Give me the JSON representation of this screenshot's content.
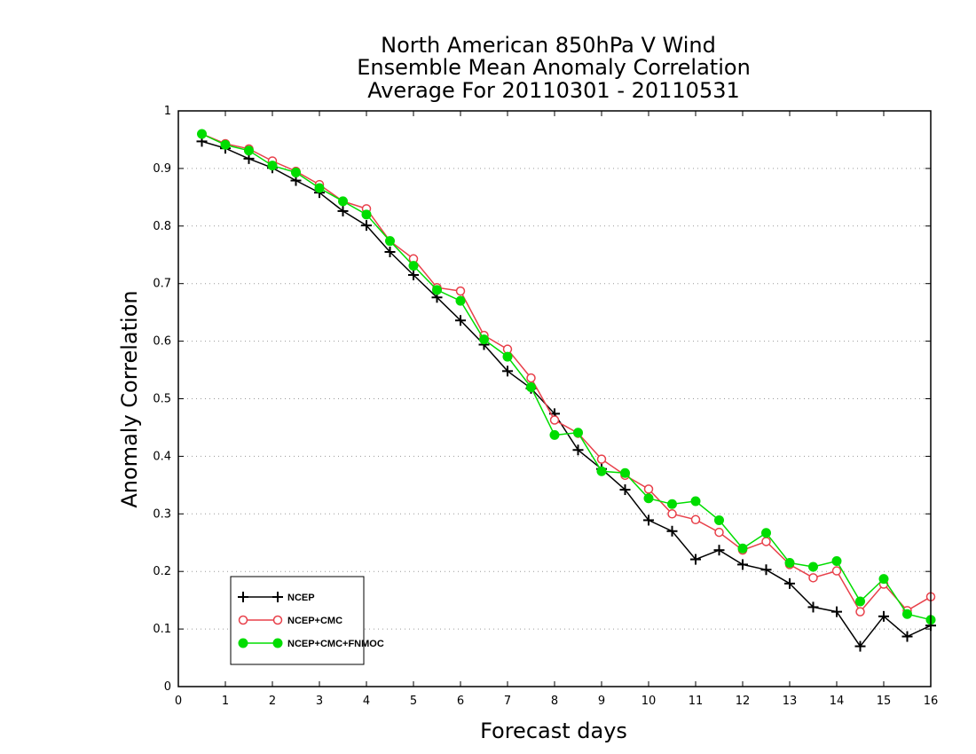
{
  "chart_data": {
    "type": "line",
    "title": [
      "North American 850hPa V Wind",
      "Ensemble Mean Anomaly Correlation",
      "Average For 20110301 - 20110531"
    ],
    "xlabel": "Forecast days",
    "ylabel": "Anomaly Correlation",
    "xlim": [
      0,
      16
    ],
    "ylim": [
      0,
      1
    ],
    "x_ticks": [
      0,
      1,
      2,
      3,
      4,
      5,
      6,
      7,
      8,
      9,
      10,
      11,
      12,
      13,
      14,
      15,
      16
    ],
    "y_ticks": [
      0,
      0.1,
      0.2,
      0.3,
      0.4,
      0.5,
      0.6,
      0.7,
      0.8,
      0.9,
      1
    ],
    "grid": "horizontal dotted",
    "legend_position": "bottom-left",
    "x": [
      0.5,
      1,
      1.5,
      2,
      2.5,
      3,
      3.5,
      4,
      4.5,
      5,
      5.5,
      6,
      6.5,
      7,
      7.5,
      8,
      8.5,
      9,
      9.5,
      10,
      10.5,
      11,
      11.5,
      12,
      12.5,
      13,
      13.5,
      14,
      14.5,
      15,
      15.5,
      16
    ],
    "series": [
      {
        "name": "NCEP",
        "color": "#000000",
        "marker": "plus",
        "values": [
          0.947,
          0.935,
          0.917,
          0.901,
          0.879,
          0.858,
          0.826,
          0.801,
          0.755,
          0.715,
          0.676,
          0.636,
          0.594,
          0.548,
          0.518,
          0.474,
          0.411,
          0.378,
          0.342,
          0.289,
          0.27,
          0.221,
          0.237,
          0.212,
          0.203,
          0.179,
          0.138,
          0.13,
          0.07,
          0.122,
          0.087,
          0.106
        ]
      },
      {
        "name": "NCEP+CMC",
        "color": "#e8404a",
        "marker": "open-circle",
        "values": [
          0.96,
          0.943,
          0.934,
          0.913,
          0.895,
          0.872,
          0.843,
          0.83,
          0.774,
          0.743,
          0.693,
          0.687,
          0.61,
          0.586,
          0.536,
          0.463,
          0.44,
          0.395,
          0.367,
          0.343,
          0.3,
          0.29,
          0.268,
          0.237,
          0.252,
          0.212,
          0.189,
          0.201,
          0.13,
          0.178,
          0.132,
          0.156
        ]
      },
      {
        "name": "NCEP+CMC+FNMOC",
        "color": "#00dd00",
        "marker": "filled-circle",
        "values": [
          0.96,
          0.941,
          0.931,
          0.905,
          0.893,
          0.866,
          0.843,
          0.82,
          0.774,
          0.731,
          0.689,
          0.67,
          0.603,
          0.573,
          0.52,
          0.437,
          0.441,
          0.374,
          0.371,
          0.327,
          0.317,
          0.322,
          0.289,
          0.24,
          0.267,
          0.215,
          0.208,
          0.218,
          0.148,
          0.187,
          0.126,
          0.116
        ]
      }
    ]
  }
}
